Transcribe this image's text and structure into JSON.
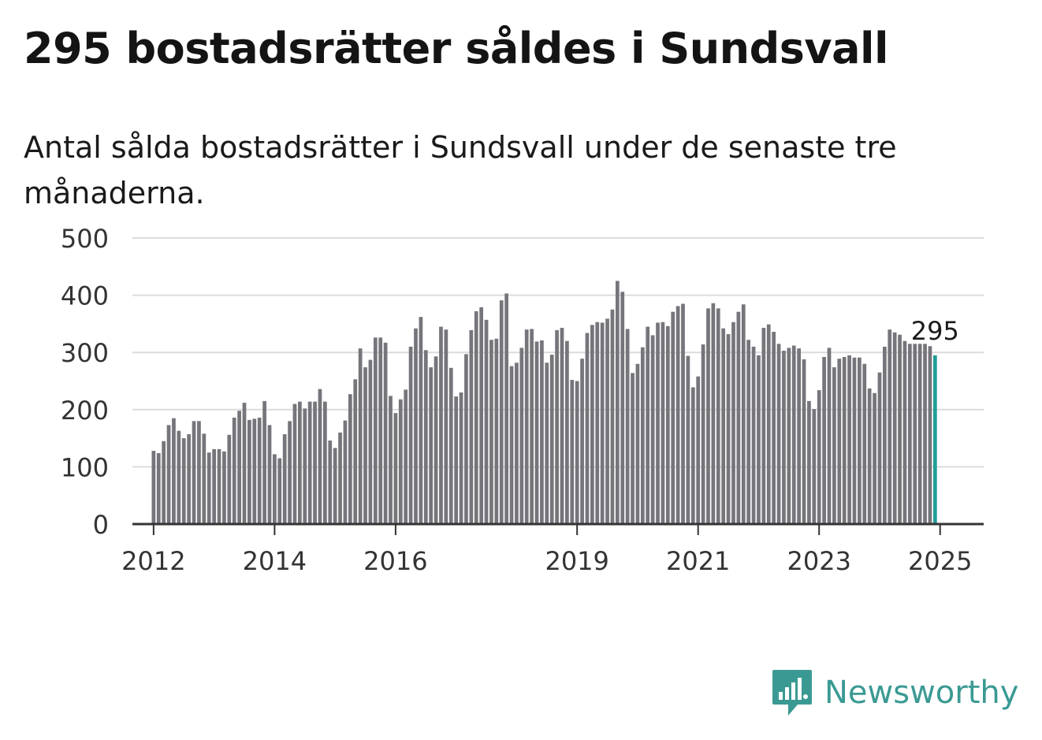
{
  "title": "295 bostadsrätter såldes i Sundsvall",
  "subtitle": "Antal sålda bostadsrätter i Sundsvall under de senaste tre månaderna.",
  "logo": {
    "name": "Newsworthy",
    "icon": "newsworthy-bar-chart-icon",
    "color": "#3a9a93"
  },
  "colors": {
    "bar": "#76757b",
    "highlight": "#1f9d96",
    "grid": "#dcdcdc",
    "axis": "#333333"
  },
  "chart_data": {
    "type": "bar",
    "ylim": [
      0,
      500
    ],
    "yticks": [
      0,
      100,
      200,
      300,
      400,
      500
    ],
    "xlim": [
      2011.65,
      2025.72
    ],
    "xticks": [
      {
        "label": "2012",
        "value": 2012
      },
      {
        "label": "2014",
        "value": 2014
      },
      {
        "label": "2016",
        "value": 2016
      },
      {
        "label": "2019",
        "value": 2019
      },
      {
        "label": "2021",
        "value": 2021
      },
      {
        "label": "2023",
        "value": 2023
      },
      {
        "label": "2025",
        "value": 2025
      }
    ],
    "start": {
      "year": 2012,
      "month": 1
    },
    "values": [
      128,
      124,
      145,
      173,
      185,
      163,
      150,
      157,
      180,
      180,
      158,
      125,
      131,
      131,
      127,
      156,
      186,
      198,
      212,
      182,
      184,
      186,
      215,
      173,
      122,
      115,
      157,
      180,
      210,
      214,
      202,
      214,
      214,
      236,
      214,
      146,
      133,
      160,
      181,
      227,
      253,
      307,
      274,
      287,
      326,
      326,
      317,
      224,
      194,
      218,
      235,
      310,
      342,
      362,
      304,
      274,
      293,
      345,
      340,
      273,
      223,
      230,
      297,
      339,
      372,
      379,
      357,
      322,
      324,
      391,
      403,
      276,
      282,
      308,
      340,
      341,
      319,
      321,
      282,
      296,
      339,
      343,
      320,
      252,
      250,
      289,
      334,
      348,
      353,
      352,
      359,
      375,
      425,
      406,
      341,
      264,
      280,
      309,
      345,
      330,
      352,
      353,
      346,
      371,
      381,
      385,
      294,
      239,
      258,
      314,
      377,
      386,
      377,
      342,
      332,
      353,
      371,
      384,
      322,
      310,
      295,
      343,
      349,
      336,
      315,
      303,
      308,
      312,
      307,
      288,
      215,
      201,
      234,
      292,
      308,
      274,
      289,
      292,
      295,
      291,
      291,
      280,
      237,
      229,
      265,
      310,
      340,
      335,
      331,
      320,
      315,
      315,
      315,
      315,
      311,
      295
    ],
    "highlight_label": "295"
  }
}
